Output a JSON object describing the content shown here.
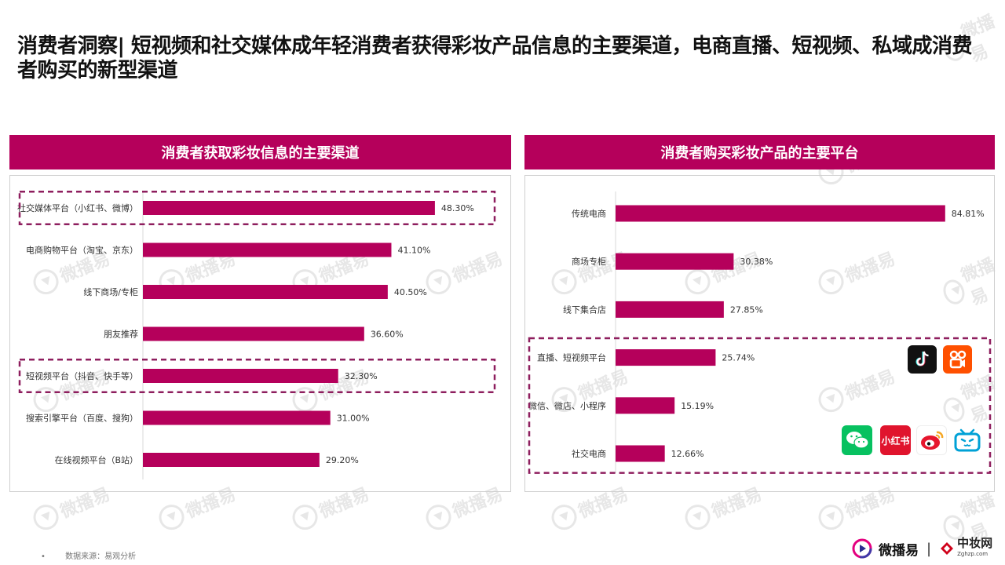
{
  "title": "消费者洞察| 短视频和社交媒体成年轻消费者获得彩妆产品信息的主要渠道，电商直播、短视频、私域成消费者购买的新型渠道",
  "watermark_text": "微播易",
  "colors": {
    "bar": "#B5005B",
    "header": "#B5005B",
    "highlight": "#8E1E5E"
  },
  "source": {
    "bullet": "•",
    "text": "数据来源：易观分析"
  },
  "brand": {
    "name": "微播易",
    "separator": "|",
    "partner": "中妆网",
    "partner_url": "Zghzp.com"
  },
  "logos": {
    "tiktok": "tiktok-icon",
    "kuaishou": "kuaishou-icon",
    "wechat": "wechat-icon",
    "xiaohongshu": {
      "icon": "xiaohongshu-icon",
      "label": "小红书"
    },
    "weibo": "weibo-icon",
    "bilibili": "bilibili-icon"
  },
  "chart_data": [
    {
      "type": "bar",
      "orientation": "horizontal",
      "title": "消费者获取彩妆信息的主要渠道",
      "categories": [
        "社交媒体平台（小红书、微博）",
        "电商购物平台（淘宝、京东）",
        "线下商场/专柜",
        "朋友推荐",
        "短视频平台（抖音、快手等）",
        "搜索引擎平台（百度、搜狗）",
        "在线视频平台（B站）"
      ],
      "values": [
        48.3,
        41.1,
        40.5,
        36.6,
        32.3,
        31.0,
        29.2
      ],
      "value_labels": [
        "48.30%",
        "41.10%",
        "40.50%",
        "36.60%",
        "32.30%",
        "31.00%",
        "29.20%"
      ],
      "unit": "%",
      "xlim": [
        0,
        100
      ],
      "highlighted_categories": [
        0,
        4
      ],
      "grid": false,
      "legend": "none"
    },
    {
      "type": "bar",
      "orientation": "horizontal",
      "title": "消费者购买彩妆产品的主要平台",
      "categories": [
        "传统电商",
        "商场专柜",
        "线下集合店",
        "直播、短视频平台",
        "微信、微店、小程序",
        "社交电商"
      ],
      "values": [
        84.81,
        30.38,
        27.85,
        25.74,
        15.19,
        12.66
      ],
      "value_labels": [
        "84.81%",
        "30.38%",
        "27.85%",
        "25.74%",
        "15.19%",
        "12.66%"
      ],
      "unit": "%",
      "xlim": [
        0,
        100
      ],
      "highlighted_categories": [
        3,
        4,
        5
      ],
      "grid": false,
      "legend": "none"
    }
  ]
}
